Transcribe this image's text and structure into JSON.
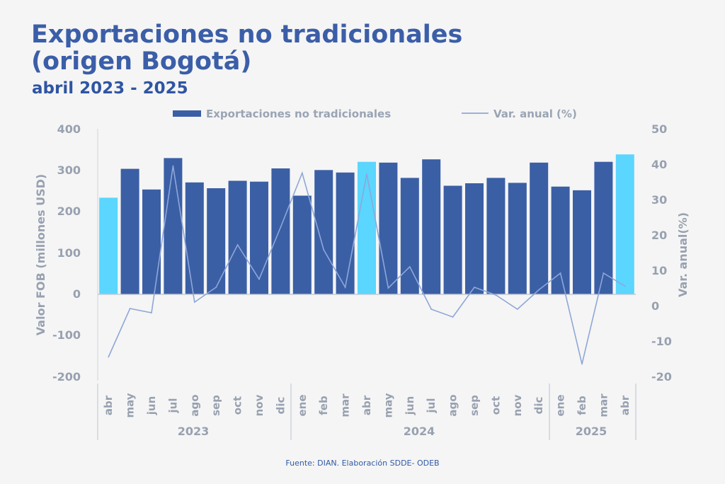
{
  "title": "Exportaciones no tradicionales (origen Bogotá)",
  "subtitle": "abril 2023 - 2025",
  "source": "Fuente: DIAN. Elaboración SDDE- ODEB",
  "colors": {
    "bar": "#3b5fa5",
    "highlight": "#5ad6ff",
    "line": "#8ea7d8",
    "axis": "#bcc3ce",
    "text": "#98a1b0"
  },
  "chart_data": {
    "type": "bar",
    "categories": [
      "abr",
      "may",
      "jun",
      "jul",
      "ago",
      "sep",
      "oct",
      "nov",
      "dic",
      "ene",
      "feb",
      "mar",
      "abr",
      "may",
      "jun",
      "jul",
      "ago",
      "sep",
      "oct",
      "nov",
      "dic",
      "ene",
      "feb",
      "mar",
      "abr"
    ],
    "year_groups": [
      {
        "label": "2023",
        "start": 0,
        "end": 8
      },
      {
        "label": "2024",
        "start": 9,
        "end": 20
      },
      {
        "label": "2025",
        "start": 21,
        "end": 24
      }
    ],
    "series": [
      {
        "name": "Exportaciones no tradicionales",
        "type": "bar",
        "axis": "left",
        "values": [
          233,
          303,
          253,
          329,
          270,
          256,
          274,
          272,
          304,
          238,
          300,
          294,
          320,
          318,
          281,
          326,
          262,
          268,
          281,
          269,
          318,
          260,
          251,
          320,
          338
        ]
      },
      {
        "name": "Var. anual (%)",
        "type": "line",
        "axis": "right",
        "values": [
          -14.5,
          -0.8,
          -2.0,
          39.5,
          1.0,
          5.2,
          17.2,
          7.5,
          22.2,
          37.5,
          15.8,
          5.2,
          37.2,
          5.0,
          11.0,
          -1.0,
          -3.2,
          5.2,
          3.0,
          -1.0,
          4.5,
          9.2,
          -16.5,
          9.2,
          5.5
        ]
      }
    ],
    "highlight_indices": [
      0,
      12,
      24
    ],
    "ylabel": "Valor FOB (millones USD)",
    "y2label": "Var. anual(%)",
    "ylim": [
      -200,
      400
    ],
    "y2lim": [
      -20,
      50
    ],
    "yticks": [
      "400",
      "300",
      "200",
      "100",
      "0",
      "-100",
      "-200"
    ],
    "y2ticks": [
      "50",
      "40",
      "30",
      "20",
      "10",
      "0",
      "-10",
      "-20"
    ],
    "legend_position": "top",
    "grid": false
  }
}
